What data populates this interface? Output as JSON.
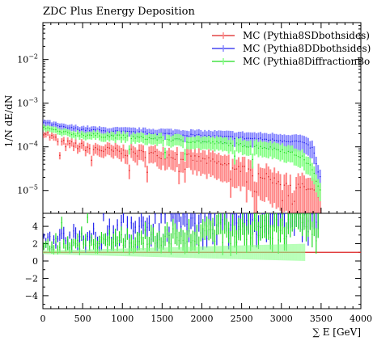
{
  "title": "ZDC Plus Energy Deposition",
  "chart_data": [
    {
      "type": "line",
      "panel": "main",
      "title": "ZDC Plus Energy Deposition",
      "xlabel": "",
      "ylabel": "1/N dE/dN",
      "yscale": "log",
      "xlim": [
        0,
        4000
      ],
      "ylim": [
        3e-06,
        0.07
      ],
      "y_ticks": [
        {
          "value": 1e-05,
          "label": "10^-5"
        },
        {
          "value": 0.0001,
          "label": "10^-4"
        },
        {
          "value": 0.001,
          "label": "10^-3"
        },
        {
          "value": 0.01,
          "label": "10^-2"
        }
      ],
      "legend": {
        "position": "top-right"
      },
      "x_start": 0,
      "bin_width": 25,
      "series": [
        {
          "name": "MC (Pythia8SDbothsides)",
          "color": "#dd2222",
          "error_color": "#ff8888",
          "anchors": [
            [
              0,
              0.00024
            ],
            [
              100,
              0.00017
            ],
            [
              250,
              0.00012
            ],
            [
              500,
              0.0001
            ],
            [
              750,
              8.5e-05
            ],
            [
              1000,
              7.5e-05
            ],
            [
              1250,
              7e-05
            ],
            [
              1500,
              6.5e-05
            ],
            [
              1750,
              6e-05
            ],
            [
              2000,
              5e-05
            ],
            [
              2250,
              4e-05
            ],
            [
              2500,
              3.2e-05
            ],
            [
              2750,
              2.2e-05
            ],
            [
              3000,
              1.5e-05
            ],
            [
              3250,
              1.2e-05
            ],
            [
              3400,
              1e-05
            ],
            [
              3500,
              6e-06
            ]
          ],
          "noise": 0.2,
          "dip_prob": 0.12,
          "dip_depth": 0.45
        },
        {
          "name": "MC (Pythia8DDbothsides)",
          "color": "#2222ee",
          "error_color": "#8888ff",
          "anchors": [
            [
              0,
              0.00038
            ],
            [
              100,
              0.00033
            ],
            [
              250,
              0.00028
            ],
            [
              500,
              0.00025
            ],
            [
              750,
              0.00023
            ],
            [
              1000,
              0.00022
            ],
            [
              1250,
              0.00021
            ],
            [
              1500,
              0.0002
            ],
            [
              1750,
              0.00019
            ],
            [
              2000,
              0.00018
            ],
            [
              2250,
              0.00017
            ],
            [
              2500,
              0.00016
            ],
            [
              2750,
              0.00015
            ],
            [
              3000,
              0.00014
            ],
            [
              3250,
              0.00013
            ],
            [
              3400,
              9e-05
            ],
            [
              3475,
              2e-05
            ]
          ],
          "noise": 0.06,
          "dip_prob": 0.01,
          "dip_depth": 0.5
        },
        {
          "name": "MC (Pythia8DiffractionBo",
          "color": "#22dd22",
          "error_color": "#88ff88",
          "anchors": [
            [
              0,
              0.00028
            ],
            [
              100,
              0.00025
            ],
            [
              250,
              0.00021
            ],
            [
              500,
              0.00019
            ],
            [
              750,
              0.00018
            ],
            [
              1000,
              0.00017
            ],
            [
              1250,
              0.00016
            ],
            [
              1500,
              0.00015
            ],
            [
              1750,
              0.00014
            ],
            [
              2000,
              0.00013
            ],
            [
              2250,
              0.00012
            ],
            [
              2500,
              0.00011
            ],
            [
              2750,
              0.0001
            ],
            [
              3000,
              8.5e-05
            ],
            [
              3250,
              6e-05
            ],
            [
              3400,
              3e-05
            ],
            [
              3475,
              1e-05
            ]
          ],
          "noise": 0.09,
          "dip_prob": 0.02,
          "dip_depth": 0.5
        }
      ]
    },
    {
      "type": "line",
      "panel": "ratio",
      "xlabel": "∑ E [GeV]",
      "ylabel": "",
      "xlim": [
        0,
        4000
      ],
      "ylim": [
        -5.5,
        5.5
      ],
      "x_ticks": [
        0,
        500,
        1000,
        1500,
        2000,
        2500,
        3000,
        3500,
        4000
      ],
      "y_ticks": [
        -4,
        -2,
        0,
        2,
        4
      ],
      "series": [
        {
          "name": "MC (Pythia8SDbothsides)",
          "color": "#dd2222",
          "level": 1.0
        },
        {
          "name": "MC (Pythia8DDbothsides)",
          "color": "#2222ee",
          "level": 2.3,
          "slope": 0.001
        },
        {
          "name": "MC (Pythia8DiffractionBo",
          "color": "#22dd22",
          "level": 1.6,
          "slope": 0.0007
        }
      ]
    }
  ]
}
